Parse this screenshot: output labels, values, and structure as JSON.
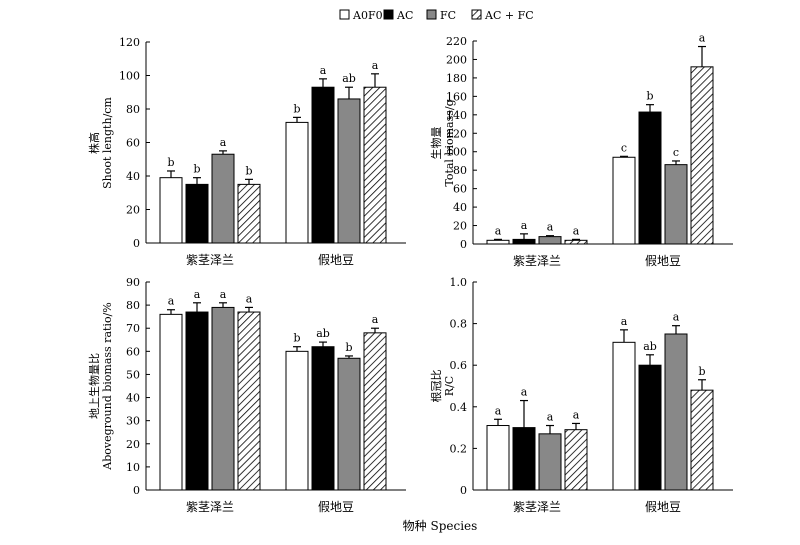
{
  "legend": {
    "items": [
      {
        "label": "A0F0",
        "fill": "#ffffff",
        "pattern": ""
      },
      {
        "label": "AC",
        "fill": "#000000",
        "pattern": ""
      },
      {
        "label": "FC",
        "fill": "#888888",
        "pattern": ""
      },
      {
        "label": "AC + FC",
        "fill": "#ffffff",
        "pattern": "hatch"
      }
    ]
  },
  "xlabel": "物种 Species",
  "chart_data": [
    {
      "type": "bar",
      "ylabel_cn": "株高",
      "ylabel_en": "Shoot length/cm",
      "ylim": [
        0,
        120
      ],
      "yticks": [
        0,
        20,
        40,
        60,
        80,
        100,
        120
      ],
      "categories": [
        "紫茎泽兰",
        "假地豆"
      ],
      "series": [
        {
          "name": "A0F0",
          "values": [
            39,
            72
          ],
          "errors": [
            4,
            3
          ],
          "letters": [
            "b",
            "b"
          ]
        },
        {
          "name": "AC",
          "values": [
            35,
            93
          ],
          "errors": [
            4,
            5
          ],
          "letters": [
            "b",
            "a"
          ]
        },
        {
          "name": "FC",
          "values": [
            53,
            86
          ],
          "errors": [
            2,
            7
          ],
          "letters": [
            "a",
            "ab"
          ]
        },
        {
          "name": "AC + FC",
          "values": [
            35,
            93
          ],
          "errors": [
            3,
            8
          ],
          "letters": [
            "b",
            "a"
          ]
        }
      ]
    },
    {
      "type": "bar",
      "ylabel_cn": "生物量",
      "ylabel_en": "Total biomass/g",
      "ylim": [
        0,
        220
      ],
      "yticks": [
        0,
        20,
        40,
        60,
        80,
        100,
        120,
        140,
        160,
        180,
        200,
        220
      ],
      "categories": [
        "紫茎泽兰",
        "假地豆"
      ],
      "series": [
        {
          "name": "A0F0",
          "values": [
            4,
            94
          ],
          "errors": [
            1,
            1
          ],
          "letters": [
            "a",
            "c"
          ]
        },
        {
          "name": "AC",
          "values": [
            5,
            143
          ],
          "errors": [
            6,
            8
          ],
          "letters": [
            "a",
            "b"
          ]
        },
        {
          "name": "FC",
          "values": [
            8,
            86
          ],
          "errors": [
            1,
            4
          ],
          "letters": [
            "a",
            "c"
          ]
        },
        {
          "name": "AC + FC",
          "values": [
            4,
            192
          ],
          "errors": [
            1,
            22
          ],
          "letters": [
            "a",
            "a"
          ]
        }
      ]
    },
    {
      "type": "bar",
      "ylabel_cn": "地上生物量比",
      "ylabel_en": "Aboveground biomass ratio/%",
      "ylim": [
        0,
        90
      ],
      "yticks": [
        0,
        10,
        20,
        30,
        40,
        50,
        60,
        70,
        80,
        90
      ],
      "categories": [
        "紫茎泽兰",
        "假地豆"
      ],
      "series": [
        {
          "name": "A0F0",
          "values": [
            76,
            60
          ],
          "errors": [
            2,
            2
          ],
          "letters": [
            "a",
            "b"
          ]
        },
        {
          "name": "AC",
          "values": [
            77,
            62
          ],
          "errors": [
            4,
            2
          ],
          "letters": [
            "a",
            "ab"
          ]
        },
        {
          "name": "FC",
          "values": [
            79,
            57
          ],
          "errors": [
            2,
            1
          ],
          "letters": [
            "a",
            "b"
          ]
        },
        {
          "name": "AC + FC",
          "values": [
            77,
            68
          ],
          "errors": [
            2,
            2
          ],
          "letters": [
            "a",
            "a"
          ]
        }
      ]
    },
    {
      "type": "bar",
      "ylabel_cn": "根冠比",
      "ylabel_en": "R/C",
      "ylim": [
        0,
        1.0
      ],
      "yticks": [
        0,
        0.2,
        0.4,
        0.6,
        0.8,
        1.0
      ],
      "yticklabels": [
        "0",
        "0.2",
        "0.4",
        "0.6",
        "0.8",
        "1.0"
      ],
      "categories": [
        "紫茎泽兰",
        "假地豆"
      ],
      "series": [
        {
          "name": "A0F0",
          "values": [
            0.31,
            0.71
          ],
          "errors": [
            0.03,
            0.06
          ],
          "letters": [
            "a",
            "a"
          ]
        },
        {
          "name": "AC",
          "values": [
            0.3,
            0.6
          ],
          "errors": [
            0.13,
            0.05
          ],
          "letters": [
            "a",
            "ab"
          ]
        },
        {
          "name": "FC",
          "values": [
            0.27,
            0.75
          ],
          "errors": [
            0.04,
            0.04
          ],
          "letters": [
            "a",
            "a"
          ]
        },
        {
          "name": "AC + FC",
          "values": [
            0.29,
            0.48
          ],
          "errors": [
            0.03,
            0.05
          ],
          "letters": [
            "a",
            "b"
          ]
        }
      ]
    }
  ]
}
